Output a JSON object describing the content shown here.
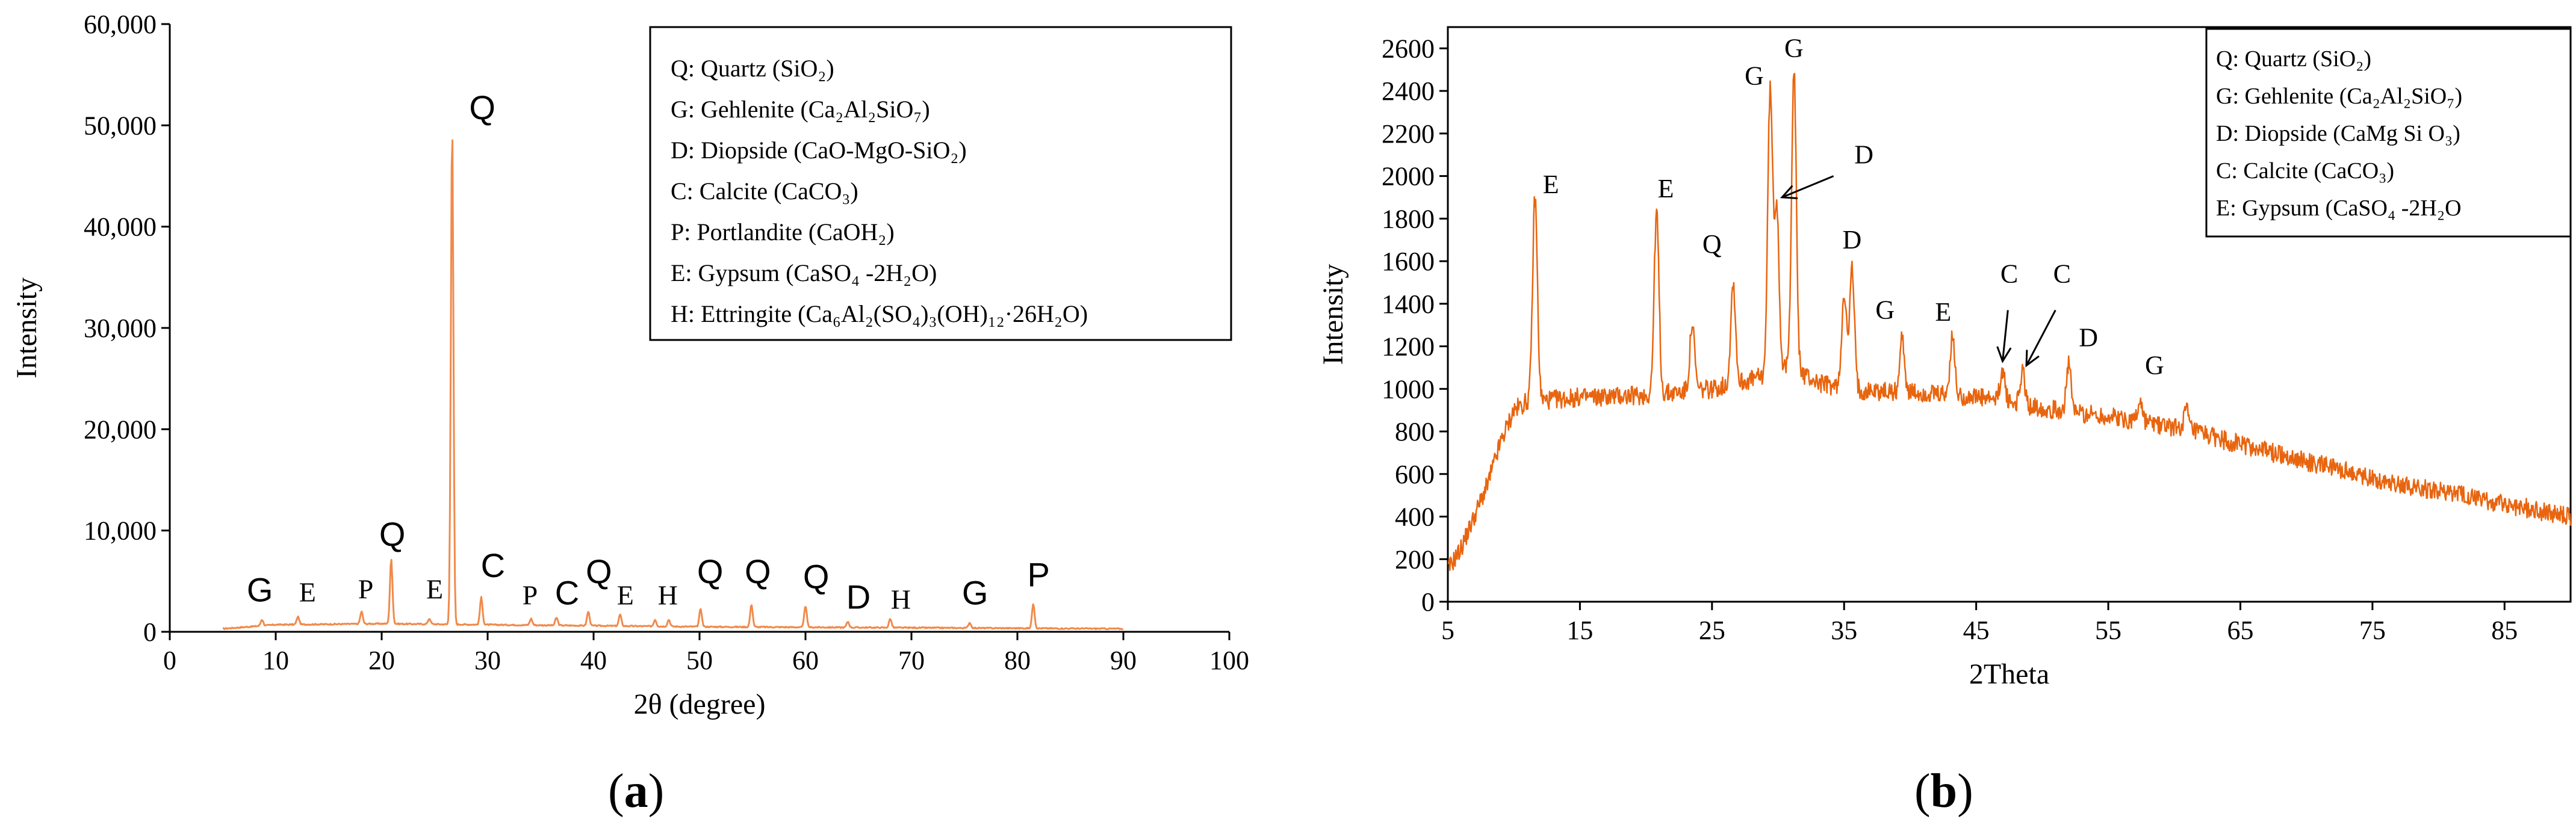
{
  "chart_data": [
    {
      "type": "line",
      "panel_label": "a",
      "xlabel": "2θ (degree)",
      "ylabel": "Intensity",
      "xlim": [
        0,
        100
      ],
      "ylim": [
        0,
        60000
      ],
      "x_ticks": [
        0,
        10,
        20,
        30,
        40,
        50,
        60,
        70,
        80,
        90,
        100
      ],
      "y_ticks": [
        0,
        10000,
        20000,
        30000,
        40000,
        50000,
        60000
      ],
      "y_tick_labels": [
        "0",
        "10,000",
        "20,000",
        "30,000",
        "40,000",
        "50,000",
        "60,000"
      ],
      "grid": false,
      "line_color": "#f08a4b",
      "baseline": [
        [
          5,
          300
        ],
        [
          10,
          700
        ],
        [
          20,
          800
        ],
        [
          30,
          700
        ],
        [
          40,
          600
        ],
        [
          50,
          500
        ],
        [
          60,
          450
        ],
        [
          70,
          400
        ],
        [
          80,
          350
        ],
        [
          90,
          300
        ]
      ],
      "peaks": [
        {
          "x": 8.7,
          "y": 1200
        },
        {
          "x": 12.1,
          "y": 1500
        },
        {
          "x": 18.1,
          "y": 2000
        },
        {
          "x": 20.9,
          "y": 7200
        },
        {
          "x": 24.5,
          "y": 1300
        },
        {
          "x": 26.65,
          "y": 50000
        },
        {
          "x": 29.4,
          "y": 3400
        },
        {
          "x": 34.1,
          "y": 1300
        },
        {
          "x": 36.5,
          "y": 1400
        },
        {
          "x": 39.5,
          "y": 2000
        },
        {
          "x": 42.5,
          "y": 1700
        },
        {
          "x": 45.8,
          "y": 1200
        },
        {
          "x": 47.1,
          "y": 1200
        },
        {
          "x": 50.1,
          "y": 2300
        },
        {
          "x": 54.9,
          "y": 2700
        },
        {
          "x": 60.0,
          "y": 2600
        },
        {
          "x": 64.0,
          "y": 1000
        },
        {
          "x": 68.0,
          "y": 1300
        },
        {
          "x": 75.5,
          "y": 900
        },
        {
          "x": 81.5,
          "y": 2800
        }
      ],
      "peak_labels": [
        {
          "label": "G",
          "x": 8.5,
          "y": 3000,
          "style": "sans"
        },
        {
          "label": "E",
          "x": 13.0,
          "y": 3000,
          "style": "serif"
        },
        {
          "label": "P",
          "x": 18.5,
          "y": 3300,
          "style": "serif"
        },
        {
          "label": "Q",
          "x": 21.0,
          "y": 8500,
          "style": "sans"
        },
        {
          "label": "E",
          "x": 25.0,
          "y": 3300,
          "style": "serif"
        },
        {
          "label": "Q",
          "x": 29.5,
          "y": 50600,
          "style": "sans"
        },
        {
          "label": "C",
          "x": 30.5,
          "y": 5400,
          "style": "sans"
        },
        {
          "label": "P",
          "x": 34.0,
          "y": 2700,
          "style": "serif"
        },
        {
          "label": "C",
          "x": 37.5,
          "y": 2700,
          "style": "sans"
        },
        {
          "label": "Q",
          "x": 40.5,
          "y": 4800,
          "style": "sans"
        },
        {
          "label": "E",
          "x": 43.0,
          "y": 2700,
          "style": "serif"
        },
        {
          "label": "H",
          "x": 47.0,
          "y": 2700,
          "style": "serif"
        },
        {
          "label": "Q",
          "x": 51.0,
          "y": 4800,
          "style": "sans"
        },
        {
          "label": "Q",
          "x": 55.5,
          "y": 4800,
          "style": "sans"
        },
        {
          "label": "Q",
          "x": 61.0,
          "y": 4300,
          "style": "sans"
        },
        {
          "label": "D",
          "x": 65.0,
          "y": 2300,
          "style": "sans"
        },
        {
          "label": "H",
          "x": 69.0,
          "y": 2300,
          "style": "serif"
        },
        {
          "label": "G",
          "x": 76.0,
          "y": 2700,
          "style": "sans"
        },
        {
          "label": "P",
          "x": 82.0,
          "y": 4500,
          "style": "sans"
        }
      ],
      "legend": [
        "Q: Quartz (SiO₂)",
        "G: Gehlenite (Ca₂Al₂SiO₇)",
        "D: Diopside (CaO-MgO-SiO₂)",
        "C: Calcite (CaCO₃)",
        "P: Portlandite (CaOH₂)",
        "E: Gypsum (CaSO₄ -2H₂O)",
        "H: Ettringite (Ca₆Al₂(SO₄)₃(OH)₁₂·26H₂O)"
      ],
      "legend_position": "top-right"
    },
    {
      "type": "line",
      "panel_label": "b",
      "xlabel": "2Theta",
      "ylabel": "Intensity",
      "xlim": [
        5,
        90
      ],
      "ylim": [
        0,
        2700
      ],
      "x_ticks": [
        5,
        15,
        25,
        35,
        45,
        55,
        65,
        75,
        85
      ],
      "y_ticks": [
        0,
        200,
        400,
        600,
        800,
        1000,
        1200,
        1400,
        1600,
        1800,
        2000,
        2200,
        2400,
        2600
      ],
      "grid": false,
      "line_color": "#e8650f",
      "baseline": [
        [
          5,
          150
        ],
        [
          6,
          250
        ],
        [
          7,
          400
        ],
        [
          8,
          550
        ],
        [
          9,
          750
        ],
        [
          10,
          900
        ],
        [
          11,
          940
        ],
        [
          15,
          960
        ],
        [
          20,
          970
        ],
        [
          25,
          1000
        ],
        [
          29,
          1060
        ],
        [
          31,
          1100
        ],
        [
          33,
          1030
        ],
        [
          35,
          1000
        ],
        [
          40,
          980
        ],
        [
          45,
          960
        ],
        [
          50,
          910
        ],
        [
          55,
          870
        ],
        [
          60,
          820
        ],
        [
          65,
          740
        ],
        [
          70,
          660
        ],
        [
          75,
          580
        ],
        [
          80,
          520
        ],
        [
          85,
          460
        ],
        [
          90,
          400
        ]
      ],
      "peaks": [
        {
          "x": 11.6,
          "y": 1900
        },
        {
          "x": 20.8,
          "y": 1830
        },
        {
          "x": 23.5,
          "y": 1300
        },
        {
          "x": 26.6,
          "y": 1500
        },
        {
          "x": 29.4,
          "y": 2400
        },
        {
          "x": 29.9,
          "y": 1860
        },
        {
          "x": 31.2,
          "y": 2500
        },
        {
          "x": 35.0,
          "y": 1460
        },
        {
          "x": 35.6,
          "y": 1560
        },
        {
          "x": 39.4,
          "y": 1240
        },
        {
          "x": 43.2,
          "y": 1240
        },
        {
          "x": 47.0,
          "y": 1090
        },
        {
          "x": 48.5,
          "y": 1080
        },
        {
          "x": 52.0,
          "y": 1110
        },
        {
          "x": 57.4,
          "y": 940
        },
        {
          "x": 60.9,
          "y": 900
        }
      ],
      "peak_labels": [
        {
          "label": "E",
          "x": 12.8,
          "y": 1920
        },
        {
          "label": "E",
          "x": 21.5,
          "y": 1900
        },
        {
          "label": "Q",
          "x": 25.0,
          "y": 1640
        },
        {
          "label": "G",
          "x": 28.2,
          "y": 2430
        },
        {
          "label": "G",
          "x": 31.2,
          "y": 2560
        },
        {
          "label": "D",
          "x": 36.5,
          "y": 2060
        },
        {
          "label": "D",
          "x": 35.6,
          "y": 1660
        },
        {
          "label": "G",
          "x": 38.1,
          "y": 1330
        },
        {
          "label": "E",
          "x": 42.5,
          "y": 1320
        },
        {
          "label": "C",
          "x": 47.5,
          "y": 1500
        },
        {
          "label": "C",
          "x": 51.5,
          "y": 1500
        },
        {
          "label": "D",
          "x": 53.5,
          "y": 1200
        },
        {
          "label": "G",
          "x": 58.5,
          "y": 1070
        }
      ],
      "arrows": [
        {
          "from": [
            34.2,
            2000
          ],
          "to": [
            30.3,
            1900
          ]
        },
        {
          "from": [
            47.4,
            1370
          ],
          "to": [
            47.0,
            1130
          ]
        },
        {
          "from": [
            51.0,
            1370
          ],
          "to": [
            48.8,
            1110
          ]
        }
      ],
      "legend": [
        "Q: Quartz (SiO₂)",
        "G: Gehlenite (Ca₂Al₂SiO₇)",
        "D: Diopside (CaMg Si O₃)",
        "C: Calcite (CaCO₃)",
        "E: Gypsum (CaSO₄ -2H₂O"
      ],
      "legend_position": "top-right"
    }
  ]
}
